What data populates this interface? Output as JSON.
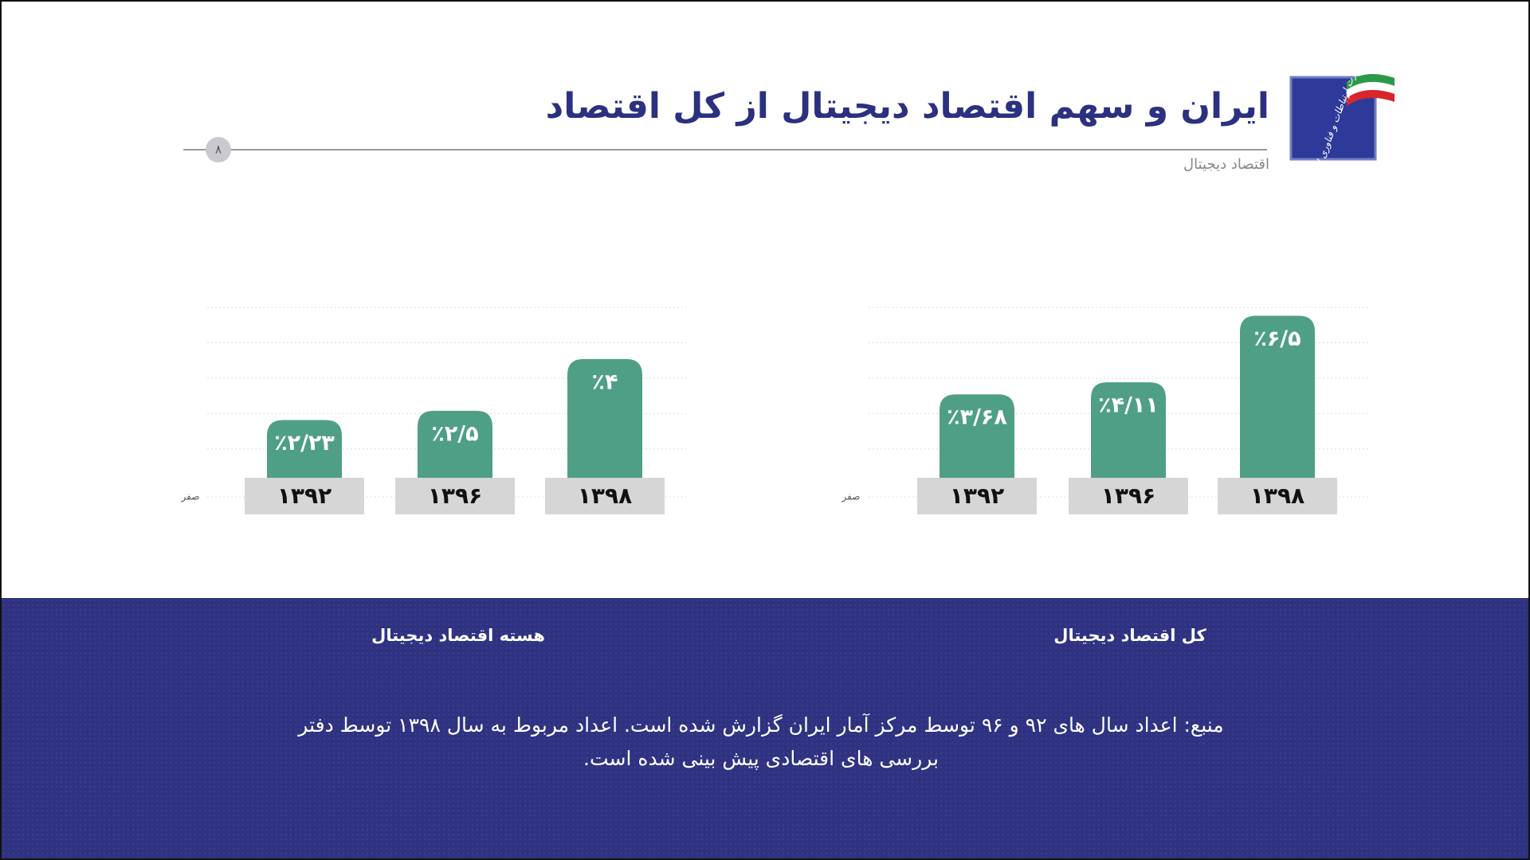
{
  "header": {
    "title": "ایران و سهم اقتصاد دیجیتال از کل اقتصاد",
    "subtitle": "اقتصاد دیجیتال",
    "page_number": "۸",
    "logo_text": "وزارت ارتباطات و فناوری اطلاعات"
  },
  "chart_data": [
    {
      "type": "bar",
      "title": "هسته اقتصاد دیجیتال",
      "categories": [
        "۱۳۹۲",
        "۱۳۹۶",
        "۱۳۹۸"
      ],
      "values": [
        2.23,
        2.5,
        4
      ],
      "value_labels": [
        "٪۲/۲۳",
        "٪۲/۵",
        "٪۴"
      ],
      "color": "#4f9f87",
      "ylim": [
        0,
        5.5
      ],
      "yticks": [
        {
          "value": 0,
          "label": "صفر"
        }
      ]
    },
    {
      "type": "bar",
      "title": "کل اقتصاد دیجیتال",
      "categories": [
        "۱۳۹۲",
        "۱۳۹۶",
        "۱۳۹۸"
      ],
      "values": [
        3.68,
        4.11,
        6.5
      ],
      "value_labels": [
        "٪۳/۶۸",
        "٪۴/۱۱",
        "٪۶/۵"
      ],
      "color": "#4f9f87",
      "ylim": [
        0,
        6.8
      ],
      "yticks": [
        {
          "value": 0,
          "label": "صفر"
        }
      ]
    }
  ],
  "source": [
    "منبع: اعداد سال های ۹۲ و ۹۶ توسط مرکز آمار ایران گزارش شده است. اعداد مربوط به  سال ۱۳۹۸ توسط دفتر",
    "بررسی های اقتصادی پیش بینی شده است."
  ]
}
